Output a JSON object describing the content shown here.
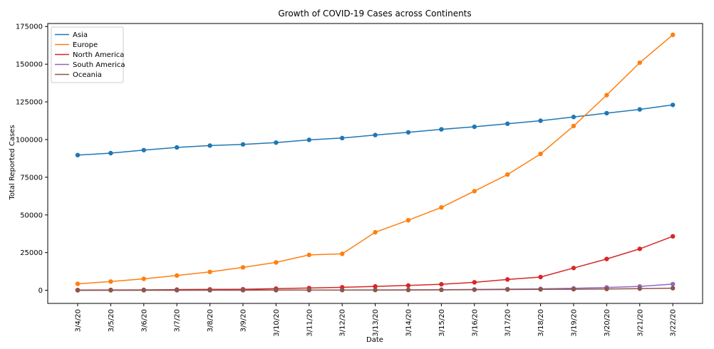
{
  "chart_data": {
    "type": "line",
    "title": "Growth of COVID-19 Cases across Continents",
    "xlabel": "Date",
    "ylabel": "Total Reported Cases",
    "categories": [
      "3/4/20",
      "3/5/20",
      "3/6/20",
      "3/7/20",
      "3/8/20",
      "3/9/20",
      "3/10/20",
      "3/11/20",
      "3/12/20",
      "3/13/20",
      "3/14/20",
      "3/15/20",
      "3/16/20",
      "3/17/20",
      "3/18/20",
      "3/19/20",
      "3/20/20",
      "3/21/20",
      "3/22/20"
    ],
    "ylim": [
      -8700,
      177000
    ],
    "yticks": [
      0,
      25000,
      50000,
      75000,
      100000,
      125000,
      150000,
      175000
    ],
    "grid": false,
    "legend_position": "top-left",
    "series": [
      {
        "name": "Asia",
        "color": "#1f77b4",
        "values": [
          89700,
          91000,
          93000,
          94800,
          96000,
          96800,
          98000,
          99800,
          101000,
          103000,
          104800,
          106800,
          108500,
          110500,
          112500,
          115000,
          117500,
          120000,
          123000
        ]
      },
      {
        "name": "Europe",
        "color": "#ff7f0e",
        "values": [
          4300,
          5800,
          7600,
          9800,
          12200,
          15200,
          18500,
          23500,
          24200,
          38500,
          46500,
          55000,
          65800,
          76800,
          90500,
          109000,
          129500,
          151000,
          169500
        ]
      },
      {
        "name": "North America",
        "color": "#d62728",
        "values": [
          200,
          250,
          300,
          450,
          600,
          700,
          1100,
          1500,
          2000,
          2600,
          3200,
          4000,
          5300,
          7200,
          8800,
          14800,
          20800,
          27500,
          35800
        ]
      },
      {
        "name": "South America",
        "color": "#9467bd",
        "values": [
          10,
          20,
          30,
          50,
          70,
          90,
          120,
          160,
          200,
          250,
          300,
          400,
          550,
          750,
          950,
          1300,
          1900,
          2600,
          4100
        ]
      },
      {
        "name": "Oceania",
        "color": "#8c564b",
        "values": [
          50,
          60,
          70,
          80,
          100,
          110,
          130,
          150,
          170,
          200,
          250,
          300,
          400,
          500,
          600,
          700,
          900,
          1100,
          1400
        ]
      }
    ]
  }
}
